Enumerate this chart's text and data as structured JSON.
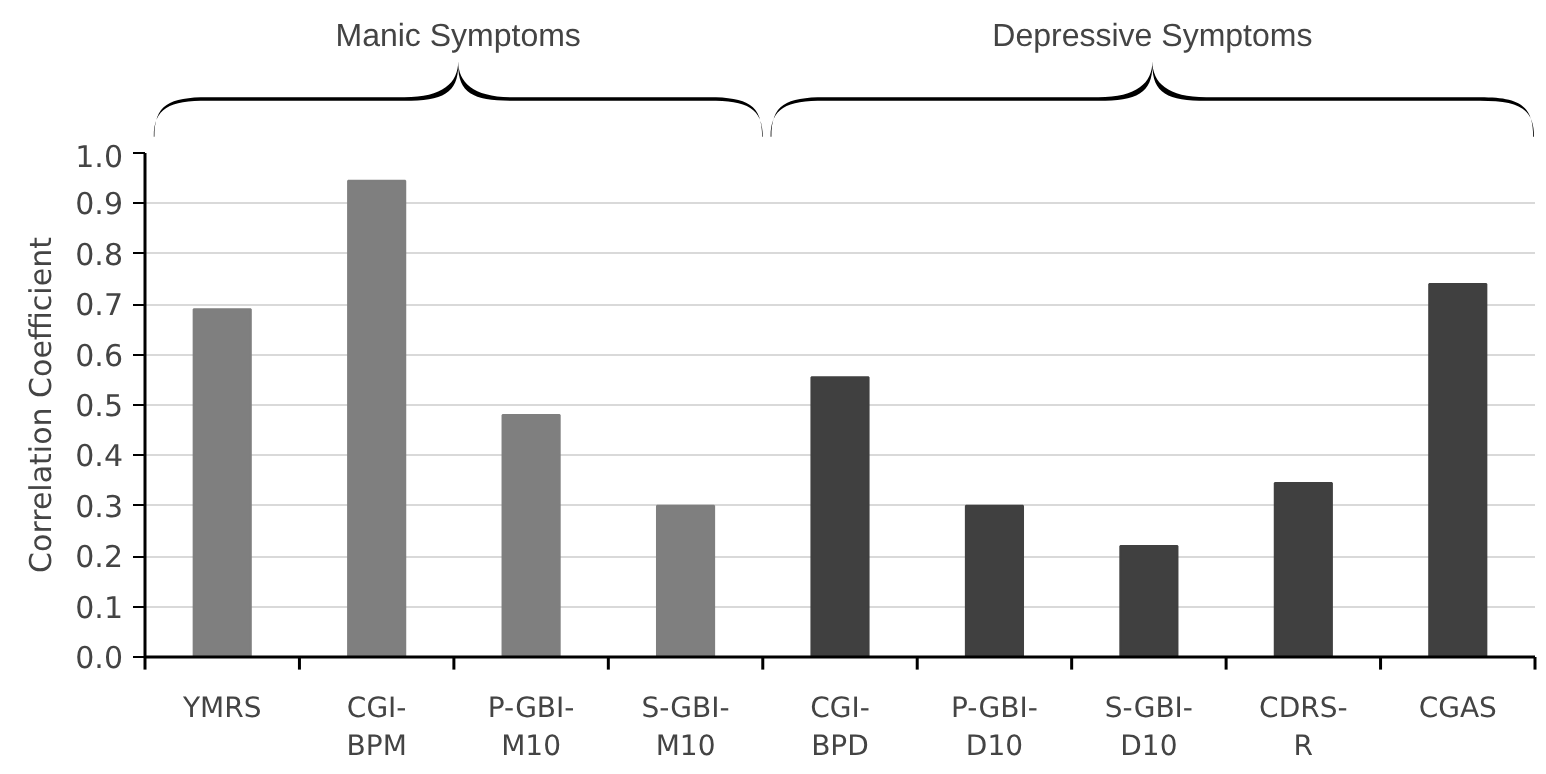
{
  "chart_data": {
    "type": "bar",
    "ylabel": "Correlation Coefficient",
    "categories": [
      "YMRS",
      "CGI-BPM",
      "P-GBI-M10",
      "S-GBI-M10",
      "CGI-BPD",
      "P-GBI-D10",
      "S-GBI-D10",
      "CDRS-R",
      "CGAS"
    ],
    "values": [
      0.69,
      0.945,
      0.48,
      0.3,
      0.555,
      0.3,
      0.22,
      0.345,
      0.74
    ],
    "colors": [
      "#7f7f7f",
      "#7f7f7f",
      "#7f7f7f",
      "#7f7f7f",
      "#404040",
      "#404040",
      "#404040",
      "#404040",
      "#404040"
    ],
    "annotations": [
      "Manic  Symptoms",
      "Depressive Symptoms"
    ],
    "ylim": [
      0,
      1.0
    ],
    "yticks": [
      {
        "value": 0,
        "label": "0.0"
      },
      {
        "value": 0.1,
        "label": "0.1"
      },
      {
        "value": 0.2,
        "label": "0.2"
      },
      {
        "value": 0.3,
        "label": "0.3"
      },
      {
        "value": 0.4,
        "label": "0.4"
      },
      {
        "value": 0.5,
        "label": "0.5"
      },
      {
        "value": 0.6,
        "label": "0.6"
      },
      {
        "value": 0.7,
        "label": "0.7"
      },
      {
        "value": 0.8,
        "label": "0.8"
      },
      {
        "value": 0.9,
        "label": "0.9"
      },
      {
        "value": 1.0,
        "label": "1.0"
      }
    ],
    "grid": "y"
  }
}
